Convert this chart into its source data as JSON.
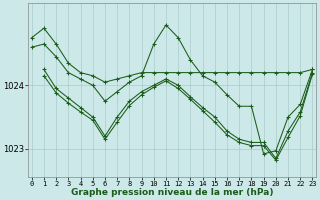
{
  "bg_color": "#cce8e8",
  "grid_color": "#aacccc",
  "line_color": "#1a5c1a",
  "marker_color": "#1a5c1a",
  "xlabel": "Graphe pression niveau de la mer (hPa)",
  "xlabel_fontsize": 6.5,
  "yticks": [
    1023,
    1024
  ],
  "xticks": [
    0,
    1,
    2,
    3,
    4,
    5,
    6,
    7,
    8,
    9,
    10,
    11,
    12,
    13,
    14,
    15,
    16,
    17,
    18,
    19,
    20,
    21,
    22,
    23
  ],
  "ylim": [
    1022.55,
    1025.3
  ],
  "xlim": [
    -0.3,
    23.3
  ],
  "series": [
    {
      "x": [
        0,
        1,
        2,
        3,
        4,
        5,
        6,
        7,
        8,
        9,
        10,
        11,
        12,
        13,
        14,
        15,
        16,
        17,
        18,
        19,
        20,
        21,
        22,
        23
      ],
      "y": [
        1024.75,
        1024.9,
        1024.65,
        1024.35,
        1024.2,
        1024.15,
        1024.05,
        1024.1,
        1024.15,
        1024.2,
        1024.2,
        1024.2,
        1024.2,
        1024.2,
        1024.2,
        1024.2,
        1024.2,
        1024.2,
        1024.2,
        1024.2,
        1024.2,
        1024.2,
        1024.2,
        1024.25
      ]
    },
    {
      "x": [
        0,
        1,
        2,
        3,
        4,
        5,
        6,
        7,
        8,
        9,
        10,
        11,
        12,
        13,
        14,
        15,
        16,
        17,
        18,
        19,
        20,
        21,
        22,
        23
      ],
      "y": [
        1024.6,
        1024.65,
        1024.45,
        1024.2,
        1024.1,
        1024.0,
        1023.75,
        1023.9,
        1024.05,
        1024.15,
        1024.65,
        1024.95,
        1024.75,
        1024.4,
        1024.15,
        1024.05,
        1023.85,
        1023.67,
        1023.67,
        1022.92,
        1022.97,
        1023.5,
        1023.7,
        1024.25
      ]
    },
    {
      "x": [
        1,
        2,
        3,
        4,
        5,
        6,
        7,
        8,
        9,
        10,
        11,
        12,
        13,
        14,
        15,
        16,
        17,
        18,
        19,
        20,
        21,
        22,
        23
      ],
      "y": [
        1024.25,
        1023.95,
        1023.8,
        1023.65,
        1023.5,
        1023.2,
        1023.5,
        1023.75,
        1023.9,
        1024.0,
        1024.1,
        1024.0,
        1023.82,
        1023.65,
        1023.5,
        1023.28,
        1023.15,
        1023.1,
        1023.1,
        1022.85,
        1023.28,
        1023.58,
        1024.2
      ]
    },
    {
      "x": [
        1,
        2,
        3,
        4,
        5,
        6,
        7,
        8,
        9,
        10,
        11,
        12,
        13,
        14,
        15,
        16,
        17,
        18,
        19,
        20,
        21,
        22,
        23
      ],
      "y": [
        1024.15,
        1023.88,
        1023.72,
        1023.58,
        1023.45,
        1023.15,
        1023.42,
        1023.68,
        1023.85,
        1023.97,
        1024.07,
        1023.95,
        1023.78,
        1023.6,
        1023.42,
        1023.22,
        1023.1,
        1023.05,
        1023.05,
        1022.82,
        1023.18,
        1023.52,
        1024.18
      ]
    }
  ]
}
